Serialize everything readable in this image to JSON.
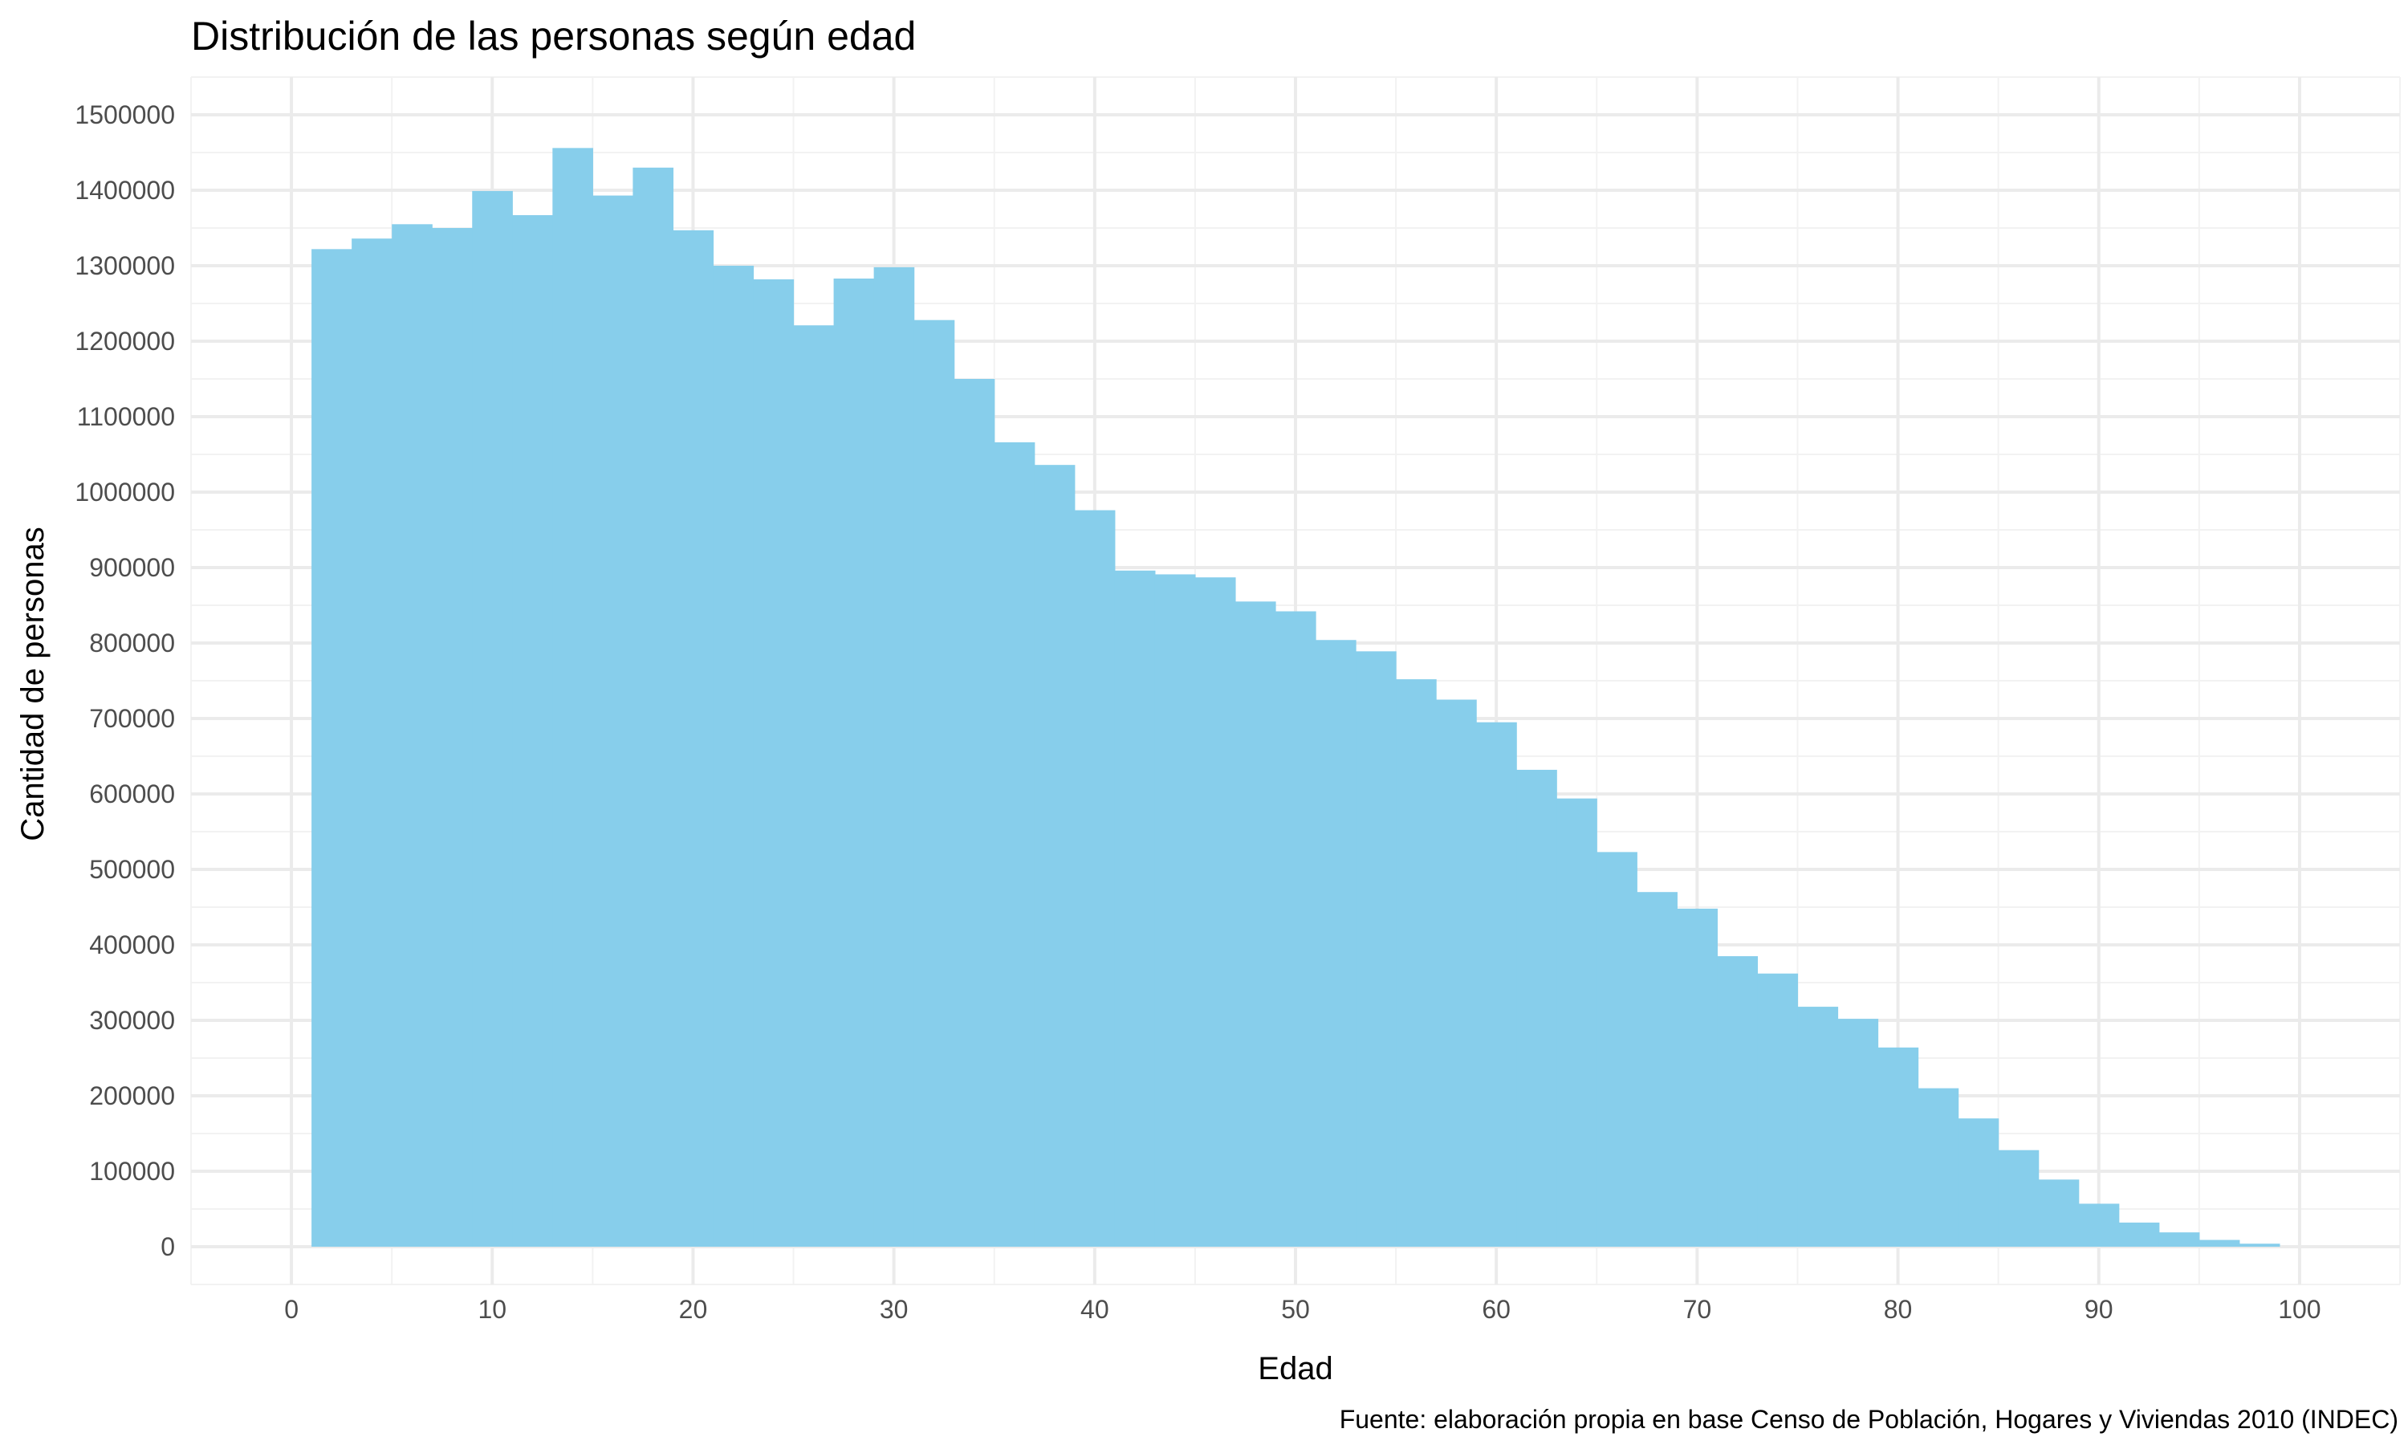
{
  "chart_data": {
    "type": "bar",
    "title": "Distribución de las personas según edad",
    "xlabel": "Edad",
    "ylabel": "Cantidad de personas",
    "caption": "Fuente: elaboración propia en base Censo de Población, Hogares y Viviendas 2010 (INDEC)",
    "histogram": true,
    "bin_width": 2,
    "x_start": 1,
    "xlim": [
      -5,
      105
    ],
    "ylim": [
      -50000,
      1550000
    ],
    "x_ticks": [
      0,
      10,
      20,
      30,
      40,
      50,
      60,
      70,
      80,
      90,
      100
    ],
    "y_ticks": [
      0,
      100000,
      200000,
      300000,
      400000,
      500000,
      600000,
      700000,
      800000,
      900000,
      1000000,
      1100000,
      1200000,
      1300000,
      1400000,
      1500000
    ],
    "grid": true,
    "bar_color": "#87CEEB",
    "values": [
      1322000,
      1336000,
      1355000,
      1350000,
      1399000,
      1367000,
      1456000,
      1393000,
      1430000,
      1347000,
      1300000,
      1282000,
      1221000,
      1283000,
      1298000,
      1228000,
      1150000,
      1066000,
      1036000,
      976000,
      896000,
      891000,
      887000,
      855000,
      842000,
      804000,
      789000,
      752000,
      725000,
      695000,
      632000,
      594000,
      523000,
      470000,
      448000,
      385000,
      362000,
      318000,
      302000,
      264000,
      210000,
      170000,
      128000,
      89000,
      57000,
      32000,
      19000,
      9000,
      4000
    ]
  }
}
